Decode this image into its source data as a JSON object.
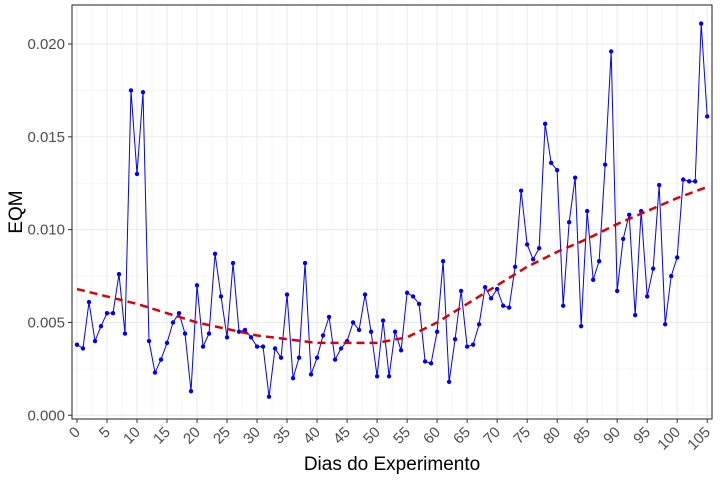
{
  "chart_data": {
    "type": "line",
    "x_label": "Dias do Experimento",
    "y_label": "EQM",
    "xlim": [
      -0.83,
      105.8
    ],
    "ylim": [
      -0.0002,
      0.0221
    ],
    "xticks": [
      0,
      5,
      10,
      15,
      20,
      25,
      30,
      35,
      40,
      45,
      50,
      55,
      60,
      65,
      70,
      75,
      80,
      85,
      90,
      95,
      100,
      105
    ],
    "yticks": [
      {
        "value": 0,
        "label": "0.000"
      },
      0.005,
      {
        "value": 0.01,
        "label": "0.010"
      },
      0.015,
      {
        "value": 0.02,
        "label": "0.020"
      }
    ],
    "grid": true,
    "series": [
      {
        "color": "#0000ff",
        "style": "solid",
        "markers": true,
        "x": [
          0,
          1,
          2,
          3,
          4,
          5,
          6,
          7,
          8,
          9,
          10,
          11,
          12,
          13,
          14,
          15,
          16,
          17,
          18,
          19,
          20,
          21,
          22,
          23,
          24,
          25,
          26,
          27,
          28,
          29,
          30,
          31,
          32,
          33,
          34,
          35,
          36,
          37,
          38,
          39,
          40,
          41,
          42,
          43,
          44,
          45,
          46,
          47,
          48,
          49,
          50,
          51,
          52,
          53,
          54,
          55,
          56,
          57,
          58,
          59,
          60,
          61,
          62,
          63,
          64,
          65,
          66,
          67,
          68,
          69,
          70,
          71,
          72,
          73,
          74,
          75,
          76,
          77,
          78,
          79,
          80,
          81,
          82,
          83,
          84,
          85,
          86,
          87,
          88,
          89,
          90,
          91,
          92,
          93,
          94,
          95,
          96,
          97,
          98,
          99,
          100,
          101,
          102,
          103,
          104,
          105
        ],
        "values": [
          0.0038,
          0.0036,
          0.0061,
          0.004,
          0.0048,
          0.0055,
          0.0055,
          0.0076,
          0.0044,
          0.0175,
          0.013,
          0.0174,
          0.004,
          0.0023,
          0.003,
          0.0039,
          0.005,
          0.0055,
          0.0044,
          0.0013,
          0.007,
          0.0037,
          0.0044,
          0.0087,
          0.0064,
          0.0042,
          0.0082,
          0.0045,
          0.0046,
          0.0042,
          0.0037,
          0.0037,
          0.001,
          0.0036,
          0.0031,
          0.0065,
          0.002,
          0.0031,
          0.0082,
          0.0022,
          0.0031,
          0.0043,
          0.0053,
          0.003,
          0.0036,
          0.004,
          0.005,
          0.0046,
          0.0065,
          0.0045,
          0.0021,
          0.0051,
          0.0021,
          0.0045,
          0.0035,
          0.0066,
          0.0064,
          0.006,
          0.0029,
          0.0028,
          0.0045,
          0.0083,
          0.0018,
          0.0041,
          0.0067,
          0.0037,
          0.0038,
          0.0049,
          0.0069,
          0.0063,
          0.0068,
          0.0059,
          0.0058,
          0.008,
          0.0121,
          0.0092,
          0.0084,
          0.009,
          0.0157,
          0.0136,
          0.0132,
          0.0059,
          0.0104,
          0.0128,
          0.0048,
          0.011,
          0.0073,
          0.0083,
          0.0135,
          0.0196,
          0.0067,
          0.0095,
          0.0108,
          0.0054,
          0.011,
          0.0064,
          0.0079,
          0.0124,
          0.0049,
          0.0075,
          0.0085,
          0.0127,
          0.0126,
          0.0126,
          0.0211,
          0.0161
        ]
      },
      {
        "color": "#dd0000",
        "style": "dashed",
        "markers": false,
        "x": [
          0,
          10,
          20,
          30,
          40,
          50,
          55,
          60,
          65,
          70,
          75,
          80,
          85,
          90,
          95,
          100,
          105
        ],
        "values": [
          0.0068,
          0.006,
          0.005,
          0.0043,
          0.0039,
          0.0039,
          0.0042,
          0.005,
          0.006,
          0.007,
          0.008,
          0.0088,
          0.0095,
          0.0103,
          0.011,
          0.0117,
          0.0123
        ]
      }
    ]
  }
}
